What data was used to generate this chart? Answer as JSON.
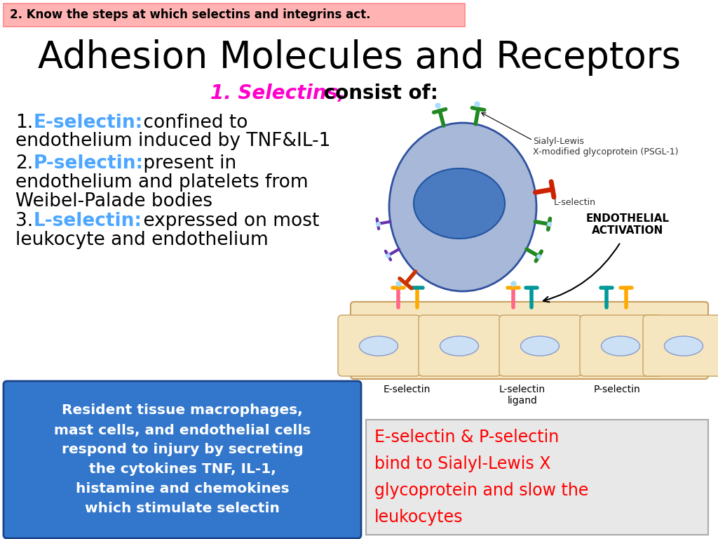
{
  "title": "Adhesion Molecules and Receptors",
  "header_text": "2. Know the steps at which selectins and integrins act.",
  "header_bg": "#ffb3b3",
  "header_border": "#ff8888",
  "subtitle_magenta": "1. Selectins,",
  "subtitle_black": " consist of:",
  "blue_box_text": [
    "Resident tissue macrophages,",
    "mast cells, and endothelial cells",
    "respond to injury by secreting",
    "the cytokines TNF, IL-1,",
    "histamine and chemokines",
    "which stimulate selectin"
  ],
  "blue_box_bg": "#3377cc",
  "red_box_lines": [
    "E-selectin & P-selectin",
    "bind to Sialyl-Lewis X",
    "glycoprotein and slow the",
    "leukocytes"
  ],
  "red_box_text_color": "#ff0000",
  "red_box_bg": "#e8e8e8",
  "red_box_border": "#aaaaaa",
  "bg_color": "#ffffff",
  "leuko_body_color": "#a8b8d8",
  "leuko_edge_color": "#3050a0",
  "nucleus_color": "#4a7abf",
  "endo_fill": "#f5e6c0",
  "endo_edge": "#c8a060",
  "endo_cell_fill": "#cce0f5",
  "selectin_label_color": "#333333"
}
